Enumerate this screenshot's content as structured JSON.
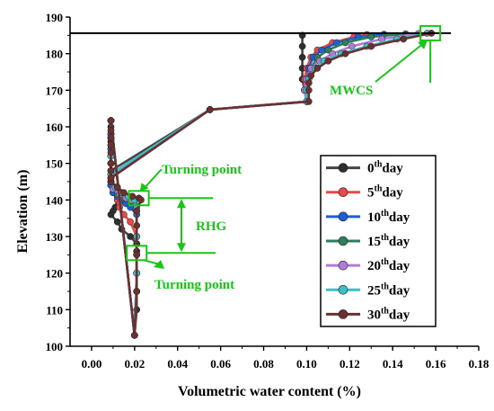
{
  "chart_data": {
    "type": "line",
    "xlabel": "Volumetric water content (%)",
    "ylabel": "Elevation (m)",
    "xlim": [
      -0.01,
      0.18
    ],
    "ylim": [
      100,
      190
    ],
    "xticks": [
      "0.00",
      "0.02",
      "0.04",
      "0.06",
      "0.08",
      "0.10",
      "0.12",
      "0.14",
      "0.16",
      "0.18"
    ],
    "xtick_values": [
      0,
      0.02,
      0.04,
      0.06,
      0.08,
      0.1,
      0.12,
      0.14,
      0.16,
      0.18
    ],
    "yticks": [
      "100",
      "110",
      "120",
      "130",
      "140",
      "150",
      "160",
      "170",
      "180",
      "190"
    ],
    "ytick_values": [
      100,
      110,
      120,
      130,
      140,
      150,
      160,
      170,
      180,
      190
    ],
    "grid": false,
    "legend_position": "bottom-right",
    "hline": 185.6,
    "series": [
      {
        "name": "0th day",
        "label_num": "0",
        "label_sup": "th",
        "label_tail": "day",
        "color": "#444444",
        "marker": "#2e2e2e",
        "x": [
          0.009,
          0.01,
          0.012,
          0.011,
          0.01,
          0.009,
          0.012,
          0.014,
          0.018,
          0.021,
          0.021,
          0.021,
          0.021,
          0.021,
          0.021,
          0.02,
          0.009,
          0.009,
          0.009,
          0.009,
          0.009,
          0.009,
          0.009,
          0.009,
          0.055,
          0.1,
          0.099,
          0.098,
          0.098,
          0.098,
          0.098,
          0.098
        ],
        "y": [
          144,
          142,
          140,
          138,
          137,
          136,
          134,
          132,
          130,
          128,
          126,
          125,
          120,
          115,
          110,
          103,
          161.7,
          160,
          158,
          156,
          154,
          152,
          150,
          148,
          164.7,
          166.9,
          170,
          173,
          176,
          179,
          182,
          185
        ]
      },
      {
        "name": "5th day",
        "label_num": "5",
        "label_sup": "th",
        "label_tail": "day",
        "color": "#e84a4a",
        "marker": "#e84a4a",
        "x": [
          0.009,
          0.01,
          0.012,
          0.013,
          0.013,
          0.015,
          0.018,
          0.021,
          0.021,
          0.021,
          0.021,
          0.02,
          0.009,
          0.009,
          0.009,
          0.009,
          0.009,
          0.009,
          0.009,
          0.055,
          0.1,
          0.099,
          0.099,
          0.1,
          0.102,
          0.105,
          0.112,
          0.122,
          0.128
        ],
        "y": [
          144,
          142,
          140,
          139,
          138,
          136,
          134,
          130,
          125,
          120,
          115,
          103,
          161.7,
          158,
          155,
          152,
          150,
          148,
          146,
          164.7,
          166.9,
          170,
          173,
          176,
          179,
          181,
          183,
          184.6,
          185.2
        ]
      },
      {
        "name": "10th day",
        "label_num": "10",
        "label_sup": "th",
        "label_tail": "day",
        "color": "#1f5fd6",
        "marker": "#1f5fd6",
        "x": [
          0.009,
          0.01,
          0.012,
          0.014,
          0.016,
          0.018,
          0.021,
          0.021,
          0.021,
          0.02,
          0.009,
          0.009,
          0.009,
          0.009,
          0.009,
          0.055,
          0.1,
          0.099,
          0.1,
          0.101,
          0.103,
          0.107,
          0.114,
          0.124,
          0.136
        ],
        "y": [
          144,
          142,
          141,
          140,
          139,
          138,
          136,
          130,
          120,
          103,
          161.7,
          158,
          154,
          150,
          146,
          164.7,
          166.9,
          170,
          173,
          176,
          179,
          181,
          183,
          184.6,
          185.3
        ]
      },
      {
        "name": "15th day",
        "label_num": "15",
        "label_sup": "th",
        "label_tail": "day",
        "color": "#2e7d5b",
        "marker": "#2e7d5b",
        "x": [
          0.009,
          0.01,
          0.012,
          0.015,
          0.018,
          0.02,
          0.021,
          0.021,
          0.021,
          0.02,
          0.009,
          0.009,
          0.009,
          0.009,
          0.055,
          0.1,
          0.099,
          0.1,
          0.102,
          0.105,
          0.11,
          0.118,
          0.13,
          0.146
        ],
        "y": [
          145,
          143,
          141.5,
          140.5,
          139.8,
          139,
          137,
          130,
          120,
          103,
          161.7,
          157,
          152,
          147,
          164.7,
          166.9,
          170,
          173,
          176,
          179,
          181,
          183,
          184.6,
          185.4
        ]
      },
      {
        "name": "20th day",
        "label_num": "20",
        "label_sup": "th",
        "label_tail": "day",
        "color": "#b07ad6",
        "marker": "#b07ad6",
        "x": [
          0.009,
          0.01,
          0.013,
          0.016,
          0.019,
          0.021,
          0.021,
          0.021,
          0.02,
          0.009,
          0.009,
          0.009,
          0.009,
          0.055,
          0.1,
          0.099,
          0.1,
          0.102,
          0.106,
          0.112,
          0.121,
          0.135,
          0.152
        ],
        "y": [
          145,
          143,
          141.5,
          140.5,
          139.8,
          138,
          130,
          120,
          103,
          161.7,
          157,
          152,
          147,
          164.7,
          166.9,
          170,
          173,
          176,
          178,
          180,
          182,
          184,
          185.5
        ]
      },
      {
        "name": "25th day",
        "label_num": "25",
        "label_sup": "th",
        "label_tail": "day",
        "color": "#3cc0c8",
        "marker": "#3cc0c8",
        "x": [
          0.009,
          0.011,
          0.014,
          0.017,
          0.02,
          0.021,
          0.021,
          0.021,
          0.02,
          0.009,
          0.009,
          0.009,
          0.009,
          0.055,
          0.1,
          0.1,
          0.101,
          0.104,
          0.108,
          0.116,
          0.128,
          0.142,
          0.156
        ],
        "y": [
          145,
          143.5,
          142,
          141,
          140,
          138,
          130,
          120,
          103,
          161.7,
          157,
          152,
          147,
          164.7,
          166.9,
          170,
          173,
          176,
          178,
          180,
          182,
          184,
          185.6
        ]
      },
      {
        "name": "30th day",
        "label_num": "30",
        "label_sup": "th",
        "label_tail": "day",
        "color": "#6b3030",
        "marker": "#6b3030",
        "x": [
          0.009,
          0.012,
          0.015,
          0.019,
          0.022,
          0.023,
          0.021,
          0.021,
          0.021,
          0.021,
          0.02,
          0.009,
          0.009,
          0.009,
          0.009,
          0.009,
          0.009,
          0.009,
          0.009,
          0.055,
          0.101,
          0.101,
          0.101,
          0.102,
          0.105,
          0.11,
          0.118,
          0.13,
          0.145,
          0.158
        ],
        "y": [
          145,
          143.5,
          142,
          141,
          140.5,
          140,
          137,
          133,
          125,
          115,
          103,
          161.7,
          159,
          157,
          155,
          153,
          150,
          148,
          146,
          164.7,
          166.9,
          170,
          172,
          174,
          176,
          178,
          180,
          182,
          184,
          185.6
        ]
      }
    ],
    "annotations": {
      "turning_point_top": "Turning point",
      "turning_point_bottom": "Turning point",
      "rhg": "RHG",
      "mwcs": "MWCS"
    },
    "annotation_values": {
      "tp_top": {
        "x": 0.022,
        "y": 140.5
      },
      "tp_bottom": {
        "x": 0.021,
        "y": 125.5
      },
      "mwcs": {
        "x": 0.1575,
        "y": 185.6
      },
      "rhg_top": 140.5,
      "rhg_bottom": 125.5
    },
    "colors": {
      "annotation": "#17c617",
      "axis": "#000000"
    }
  }
}
